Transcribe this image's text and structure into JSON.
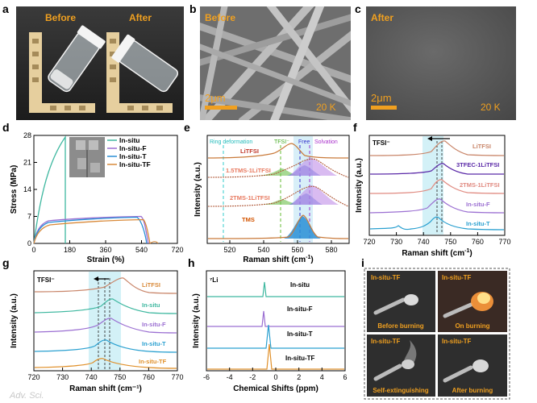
{
  "panel_letters": [
    "a",
    "b",
    "c",
    "d",
    "e",
    "f",
    "g",
    "h",
    "i"
  ],
  "photo_a": {
    "before": "Before",
    "after": "After"
  },
  "sem": {
    "b_label": "Before",
    "c_label": "After",
    "scale": "2μm",
    "b_mag": "20 K",
    "c_mag": "20 K"
  },
  "panel_d": {
    "xlabel": "Strain (%)",
    "ylabel": "Stress (MPa)",
    "xticks": [
      "0",
      "180",
      "360",
      "540",
      "720"
    ],
    "yticks": [
      "0",
      "7",
      "14",
      "21",
      "28"
    ],
    "legend": [
      "In-situ",
      "In-situ-F",
      "In-situ-T",
      "In-situ-TF"
    ]
  },
  "panel_e": {
    "xlabel": "Raman shift (cm",
    "xlabel_sup": "-1",
    "xlabel_tail": ")",
    "ylabel": "Intensity (a.u.)",
    "xticks": [
      "520",
      "540",
      "560",
      "580"
    ],
    "annotations": [
      "Ring deformation",
      "TFSI⁻",
      "Free",
      "Solvation"
    ],
    "curves": [
      "LiTFSI",
      "1.5TMS-1LiTFSI",
      "2TMS-1LiTFSI",
      "TMS"
    ]
  },
  "panel_f": {
    "title": "TFSI⁻",
    "xlabel": "Raman shift (cm",
    "xlabel_sup": "-1",
    "xlabel_tail": ")",
    "ylabel": "Intensity (a.u.)",
    "xticks": [
      "720",
      "730",
      "740",
      "750",
      "760",
      "770"
    ],
    "curves": [
      "LiTFSI",
      "3TFEC-1LiTFSI",
      "2TMS-1LiTFSI",
      "In-situ-F",
      "In-situ-T"
    ]
  },
  "panel_g": {
    "title": "TFSI⁻",
    "xlabel": "Raman shift (cm⁻¹)",
    "ylabel": "Intensity (a.u.)",
    "xticks": [
      "720",
      "730",
      "740",
      "750",
      "760",
      "770"
    ],
    "curves": [
      "LiTFSI",
      "In-situ",
      "In-situ-F",
      "In-situ-T",
      "In-situ-TF"
    ]
  },
  "panel_h": {
    "title": "⁷Li",
    "xlabel": "Chemical Shifts (ppm)",
    "ylabel": "Intensity (a.u.)",
    "xticks": [
      "-6",
      "-4",
      "-2",
      "0",
      "2",
      "4",
      "6"
    ],
    "curves": [
      "In-situ",
      "In-situ-F",
      "In-situ-T",
      "In-situ-TF"
    ]
  },
  "panel_i": {
    "samples": [
      "In-situ-TF",
      "In-situ-TF",
      "In-situ-TF",
      "In-situ-TF"
    ],
    "captions": [
      "Before burning",
      "On burning",
      "Self-extinguishing",
      "After burning"
    ]
  },
  "watermark": "Adv. Sci."
}
